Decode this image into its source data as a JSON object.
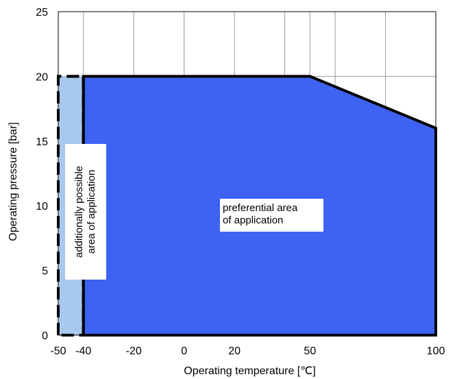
{
  "chart_data": {
    "type": "area",
    "title": "",
    "xlabel": "Operating temperature [℃]",
    "ylabel": "Operating pressure [bar]",
    "xlim": [
      -50,
      100
    ],
    "ylim": [
      0,
      25
    ],
    "x_ticks": [
      -50,
      -40,
      -20,
      0,
      20,
      50,
      100
    ],
    "y_ticks": [
      0,
      5,
      10,
      15,
      20,
      25
    ],
    "grid": true,
    "regions": [
      {
        "name": "additionally possible area of application",
        "label_lines": [
          "additionally possible",
          "area of application"
        ],
        "color": "#A8C8EE",
        "outline": "dashed",
        "points": [
          [
            -50,
            0
          ],
          [
            -50,
            20
          ],
          [
            -40,
            20
          ],
          [
            -40,
            0
          ]
        ]
      },
      {
        "name": "preferential area of application",
        "label_lines": [
          "preferential area",
          "of application"
        ],
        "color": "#3E62F2",
        "outline": "solid",
        "points": [
          [
            -40,
            0
          ],
          [
            -40,
            20
          ],
          [
            50,
            20
          ],
          [
            100,
            16
          ],
          [
            100,
            0
          ]
        ]
      }
    ]
  }
}
